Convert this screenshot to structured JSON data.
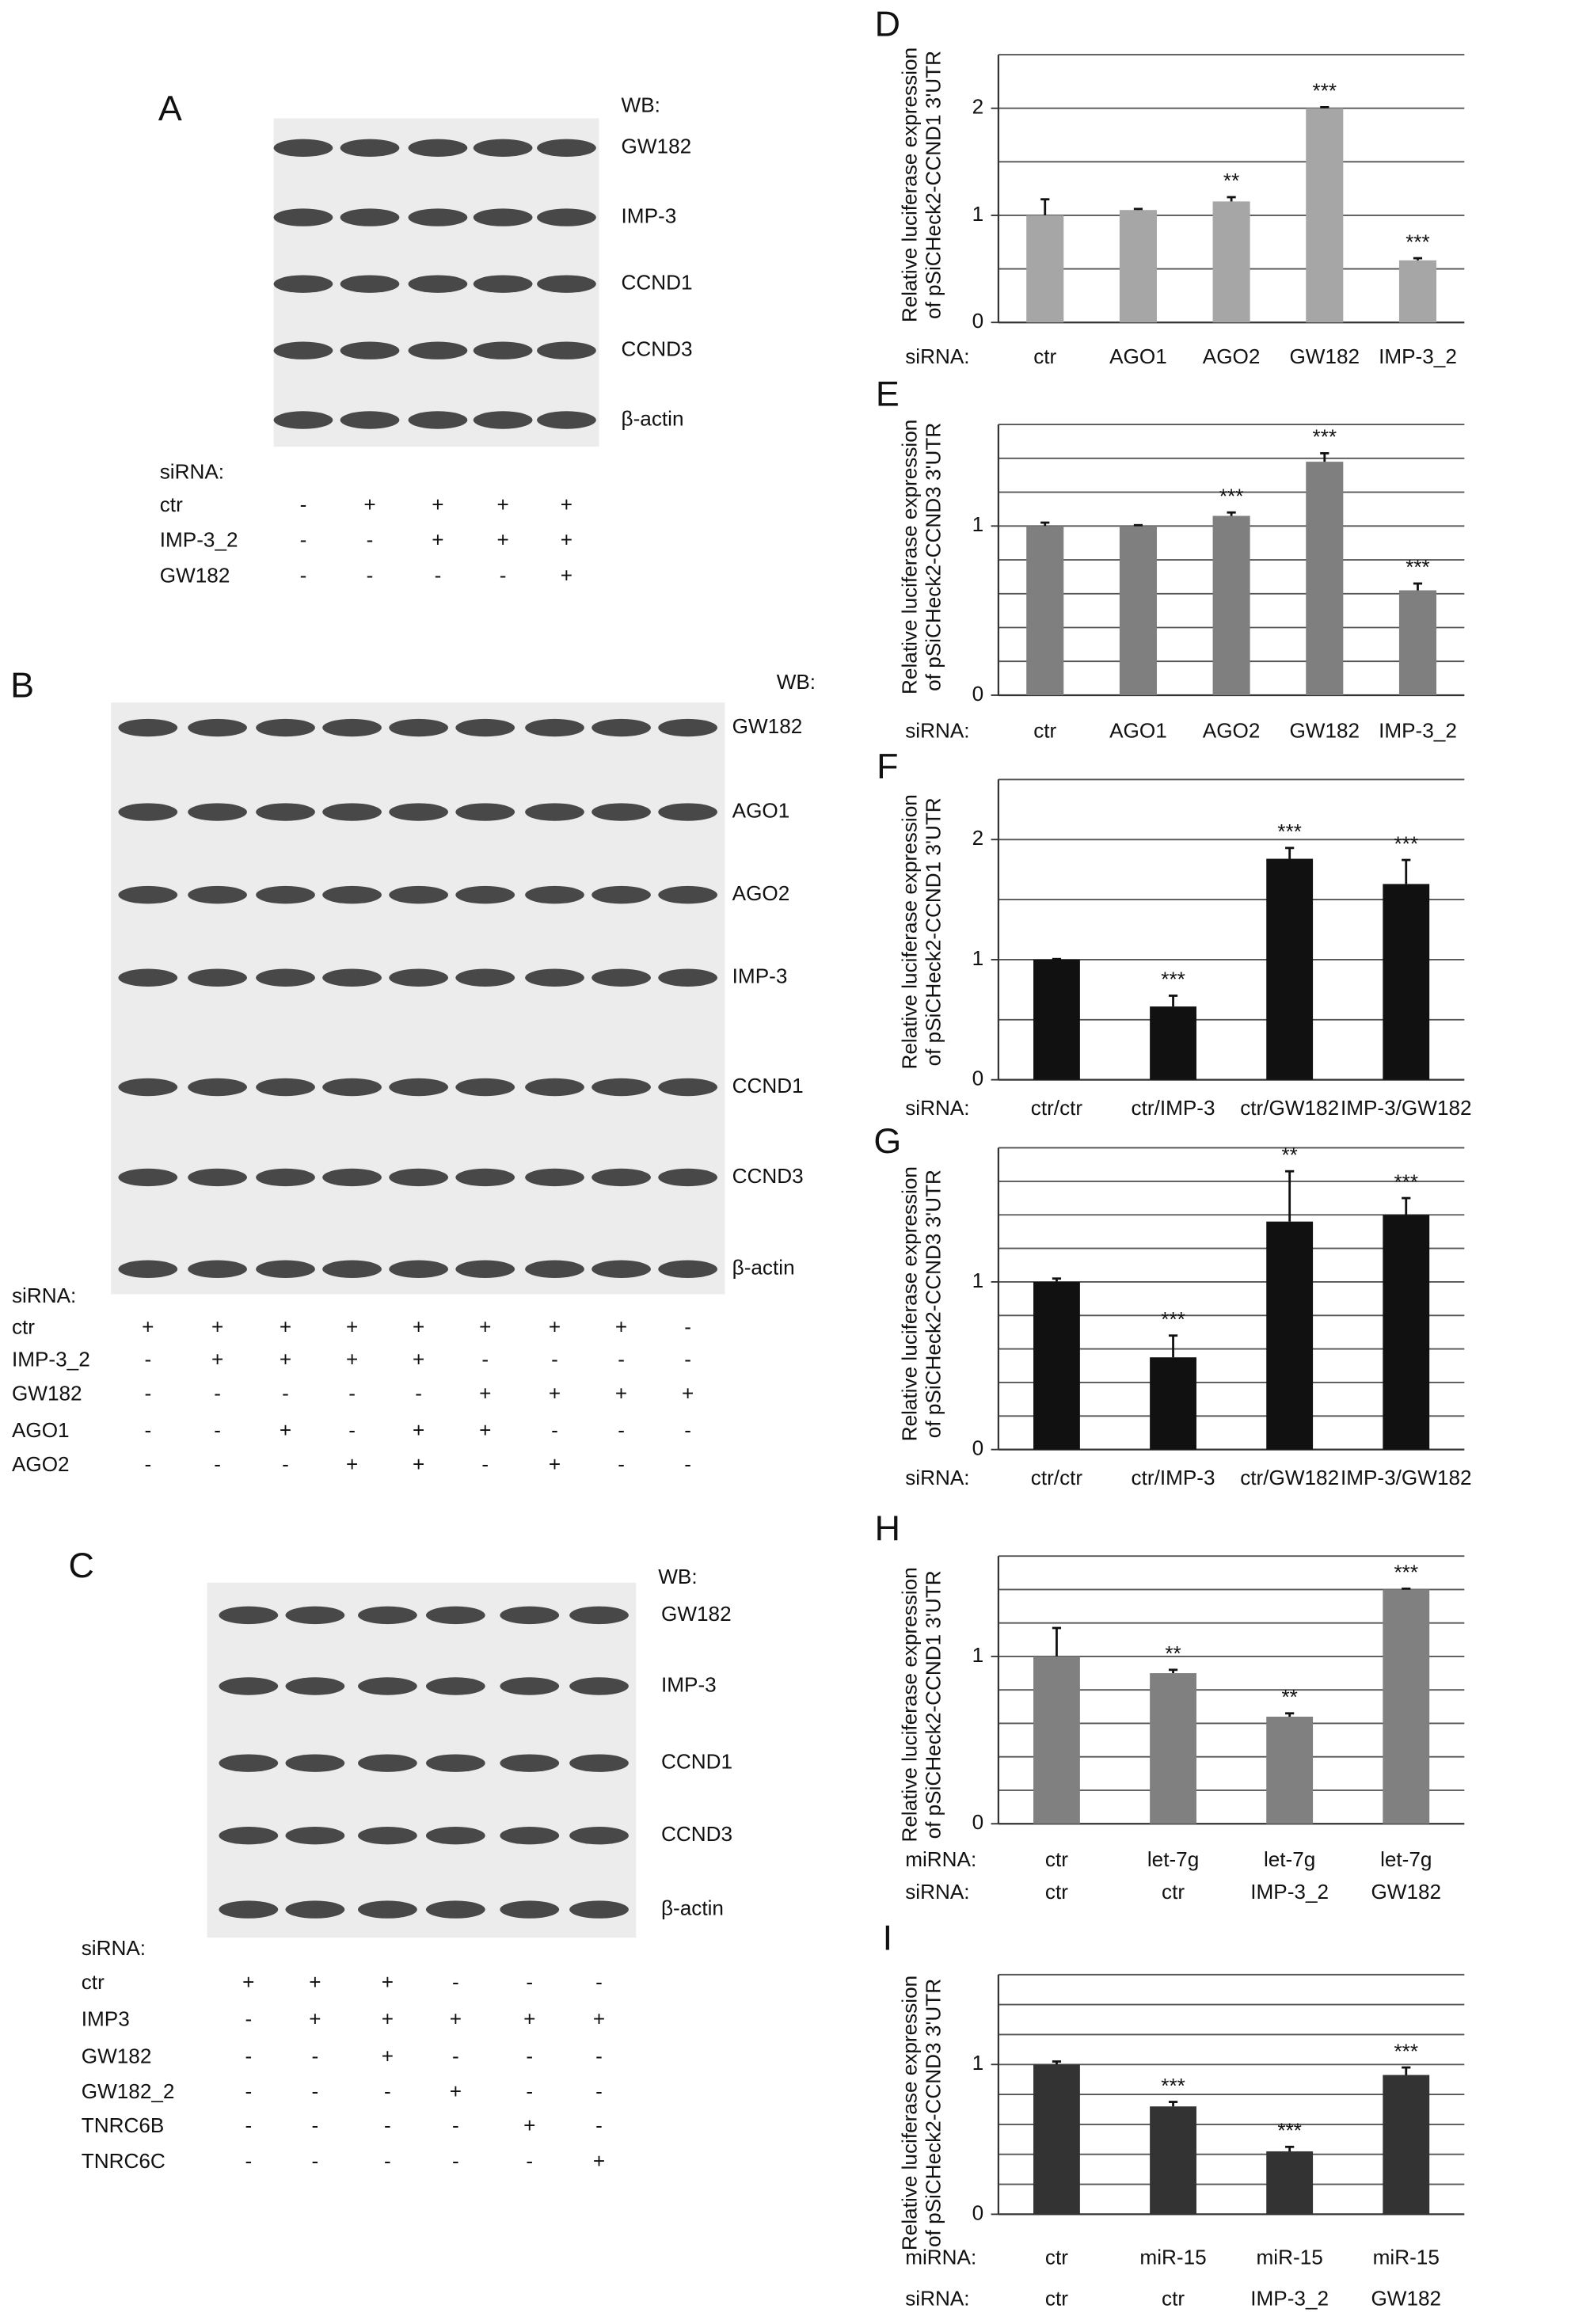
{
  "blots": [
    {
      "label": "A",
      "wb": "WB:",
      "bands": [
        "GW182",
        "IMP-3",
        "CCND1",
        "CCND3",
        "β-actin"
      ],
      "sirna": "siRNA:",
      "conditions": [
        {
          "name": "ctr",
          "signs": [
            "-",
            "+",
            "+",
            "+",
            "+"
          ]
        },
        {
          "name": "IMP-3_2",
          "signs": [
            "-",
            "-",
            "+",
            "+",
            "+"
          ]
        },
        {
          "name": "GW182",
          "signs": [
            "-",
            "-",
            "-",
            "-",
            "+"
          ]
        }
      ]
    },
    {
      "label": "B",
      "wb": "WB:",
      "bands": [
        "GW182",
        "AGO1",
        "AGO2",
        "IMP-3",
        "CCND1",
        "CCND3",
        "β-actin"
      ],
      "sirna": "siRNA:",
      "conditions": [
        {
          "name": "ctr",
          "signs": [
            "+",
            "+",
            "+",
            "+",
            "+",
            "+",
            "+",
            "+",
            "-"
          ]
        },
        {
          "name": "IMP-3_2",
          "signs": [
            "-",
            "+",
            "+",
            "+",
            "+",
            "-",
            "-",
            "-",
            "-"
          ]
        },
        {
          "name": "GW182",
          "signs": [
            "-",
            "-",
            "-",
            "-",
            "-",
            "+",
            "+",
            "+",
            "+"
          ]
        },
        {
          "name": "AGO1",
          "signs": [
            "-",
            "-",
            "+",
            "-",
            "+",
            "+",
            "-",
            "-",
            "-"
          ]
        },
        {
          "name": "AGO2",
          "signs": [
            "-",
            "-",
            "-",
            "+",
            "+",
            "-",
            "+",
            "-",
            "-"
          ]
        }
      ]
    },
    {
      "label": "C",
      "wb": "WB:",
      "bands": [
        "GW182",
        "IMP-3",
        "CCND1",
        "CCND3",
        "β-actin"
      ],
      "sirna": "siRNA:",
      "conditions": [
        {
          "name": "ctr",
          "signs": [
            "+",
            "+",
            "+",
            "-",
            "-",
            "-"
          ]
        },
        {
          "name": "IMP3",
          "signs": [
            "-",
            "+",
            "+",
            "+",
            "+",
            "+"
          ]
        },
        {
          "name": "GW182",
          "signs": [
            "-",
            "-",
            "+",
            "-",
            "-",
            "-"
          ]
        },
        {
          "name": "GW182_2",
          "signs": [
            "-",
            "-",
            "-",
            "+",
            "-",
            "-"
          ]
        },
        {
          "name": "TNRC6B",
          "signs": [
            "-",
            "-",
            "-",
            "-",
            "+",
            "-"
          ]
        },
        {
          "name": "TNRC6C",
          "signs": [
            "-",
            "-",
            "-",
            "-",
            "-",
            "+"
          ]
        }
      ]
    }
  ],
  "chart_data": [
    {
      "type": "bar",
      "panel": "D",
      "ylabel": [
        "Relative luciferase expression",
        "of pSiCHeck2-CCND1 3'UTR"
      ],
      "category_label": "siRNA:",
      "categories": [
        "ctr",
        "AGO1",
        "AGO2",
        "GW182",
        "IMP-3_2"
      ],
      "values": [
        1.0,
        1.05,
        1.13,
        2.0,
        0.58
      ],
      "errors": [
        0.15,
        0.01,
        0.04,
        0.01,
        0.02
      ],
      "stars": [
        null,
        null,
        "**",
        "***",
        "***"
      ],
      "color": "#a6a6a6",
      "ylim": [
        0,
        2.5
      ],
      "yticks": [
        0,
        1,
        2
      ],
      "grid_lines": [
        0.5,
        1,
        1.5,
        2,
        2.5
      ]
    },
    {
      "type": "bar",
      "panel": "E",
      "ylabel": [
        "Relative luciferase expression",
        "of pSiCHeck2-CCND3 3'UTR"
      ],
      "category_label": "siRNA:",
      "categories": [
        "ctr",
        "AGO1",
        "AGO2",
        "GW182",
        "IMP-3_2"
      ],
      "values": [
        1.0,
        1.0,
        1.06,
        1.38,
        0.62
      ],
      "errors": [
        0.02,
        0.005,
        0.02,
        0.05,
        0.04
      ],
      "stars": [
        null,
        null,
        "***",
        "***",
        "***"
      ],
      "color": "#7f7f7f",
      "ylim": [
        0,
        1.6
      ],
      "yticks": [
        0,
        1
      ],
      "grid_lines": [
        0.2,
        0.4,
        0.6,
        0.8,
        1,
        1.2,
        1.4,
        1.6
      ]
    },
    {
      "type": "bar",
      "panel": "F",
      "ylabel": [
        "Relative luciferase expression",
        "of pSiCHeck2-CCND1 3'UTR"
      ],
      "category_label": "siRNA:",
      "categories": [
        "ctr/ctr",
        "ctr/IMP-3",
        "ctr/GW182",
        "IMP-3/GW182"
      ],
      "values": [
        1.0,
        0.61,
        1.84,
        1.63
      ],
      "errors": [
        0.005,
        0.09,
        0.09,
        0.2
      ],
      "stars": [
        null,
        "***",
        "***",
        "***"
      ],
      "color": "#111111",
      "ylim": [
        0,
        2.5
      ],
      "yticks": [
        0,
        1,
        2
      ],
      "grid_lines": [
        0.5,
        1,
        1.5,
        2,
        2.5
      ]
    },
    {
      "type": "bar",
      "panel": "G",
      "ylabel": [
        "Relative luciferase expression",
        "of pSiCHeck2-CCND3 3'UTR"
      ],
      "category_label": "siRNA:",
      "categories": [
        "ctr/ctr",
        "ctr/IMP-3",
        "ctr/GW182",
        "IMP-3/GW182"
      ],
      "values": [
        1.0,
        0.55,
        1.36,
        1.4
      ],
      "errors": [
        0.02,
        0.13,
        0.3,
        0.1
      ],
      "stars": [
        null,
        "***",
        "**",
        "***"
      ],
      "color": "#111111",
      "ylim": [
        0,
        1.8
      ],
      "yticks": [
        0,
        1
      ],
      "grid_lines": [
        0.2,
        0.4,
        0.6,
        0.8,
        1,
        1.2,
        1.4,
        1.6,
        1.8
      ]
    },
    {
      "type": "bar",
      "panel": "H",
      "ylabel": [
        "Relative luciferase expression",
        "of pSiCHeck2-CCND1 3'UTR"
      ],
      "mirna_label": "miRNA:",
      "mirna": [
        "ctr",
        "let-7g",
        "let-7g",
        "let-7g"
      ],
      "category_label": "siRNA:",
      "categories": [
        "ctr",
        "ctr",
        "IMP-3_2",
        "GW182"
      ],
      "values": [
        1.0,
        0.9,
        0.64,
        1.4
      ],
      "errors": [
        0.17,
        0.02,
        0.02,
        0.005
      ],
      "stars": [
        null,
        "**",
        "**",
        "***"
      ],
      "color": "#808080",
      "ylim": [
        0,
        1.6
      ],
      "yticks": [
        0,
        1
      ],
      "grid_lines": [
        0.2,
        0.4,
        0.6,
        0.8,
        1,
        1.2,
        1.4,
        1.6
      ]
    },
    {
      "type": "bar",
      "panel": "I",
      "ylabel": [
        "Relative luciferase expression",
        "of pSiCHeck2-CCND3 3'UTR"
      ],
      "mirna_label": "miRNA:",
      "mirna": [
        "ctr",
        "miR-15",
        "miR-15",
        "miR-15"
      ],
      "category_label": "siRNA:",
      "categories": [
        "ctr",
        "ctr",
        "IMP-3_2",
        "GW182"
      ],
      "values": [
        1.0,
        0.72,
        0.42,
        0.93
      ],
      "errors": [
        0.02,
        0.03,
        0.03,
        0.05
      ],
      "stars": [
        null,
        "***",
        "***",
        "***"
      ],
      "color": "#333333",
      "ylim": [
        0,
        1.6
      ],
      "yticks": [
        0,
        1
      ],
      "grid_lines": [
        0.2,
        0.4,
        0.6,
        0.8,
        1,
        1.2,
        1.4,
        1.6
      ]
    }
  ]
}
